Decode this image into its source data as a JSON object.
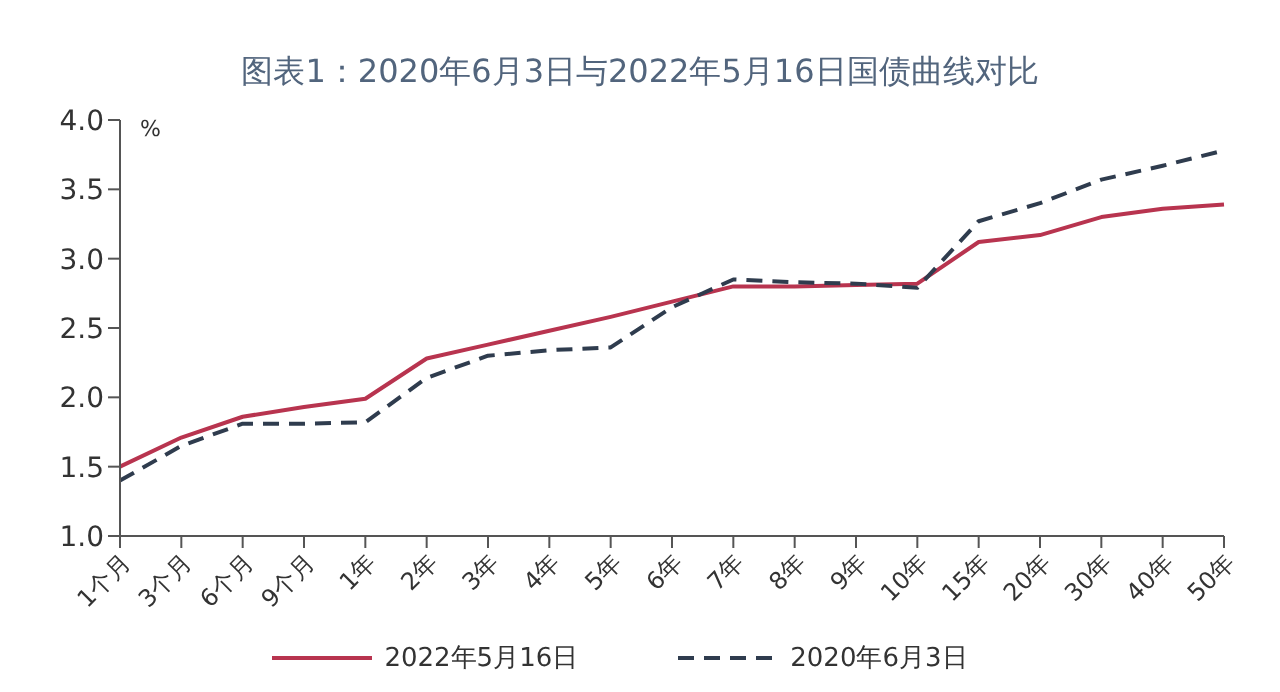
{
  "chart_data": {
    "type": "line",
    "title": "图表1：2020年6月3日与2022年5月16日国债曲线对比",
    "ylabel": "%",
    "categories": [
      "1个月",
      "3个月",
      "6个月",
      "9个月",
      "1年",
      "2年",
      "3年",
      "4年",
      "5年",
      "6年",
      "7年",
      "8年",
      "9年",
      "10年",
      "15年",
      "20年",
      "30年",
      "40年",
      "50年"
    ],
    "series": [
      {
        "name": "2022年5月16日",
        "color": "#b8344f",
        "line_style": "solid",
        "values": [
          1.5,
          1.71,
          1.86,
          1.93,
          1.99,
          2.28,
          2.38,
          2.48,
          2.58,
          2.69,
          2.8,
          2.8,
          2.81,
          2.82,
          3.12,
          3.17,
          3.3,
          3.36,
          3.39
        ]
      },
      {
        "name": "2020年6月3日",
        "color": "#2f3c4e",
        "line_style": "dashed",
        "values": [
          1.4,
          1.65,
          1.81,
          1.81,
          1.82,
          2.14,
          2.3,
          2.34,
          2.36,
          2.65,
          2.85,
          2.83,
          2.82,
          2.79,
          3.27,
          3.4,
          3.57,
          3.67,
          3.78
        ]
      }
    ],
    "ylim": [
      1,
      4
    ],
    "yticks": [
      {
        "value": 1,
        "label": "1.0"
      },
      {
        "value": 1.5,
        "label": "1.5"
      },
      {
        "value": 2,
        "label": "2.0"
      },
      {
        "value": 2.5,
        "label": "2.5"
      },
      {
        "value": 3,
        "label": "3.0"
      },
      {
        "value": 3.5,
        "label": "3.5"
      },
      {
        "value": 4,
        "label": "4.0"
      }
    ],
    "grid": false,
    "legend": "bottom",
    "marker": "none"
  }
}
